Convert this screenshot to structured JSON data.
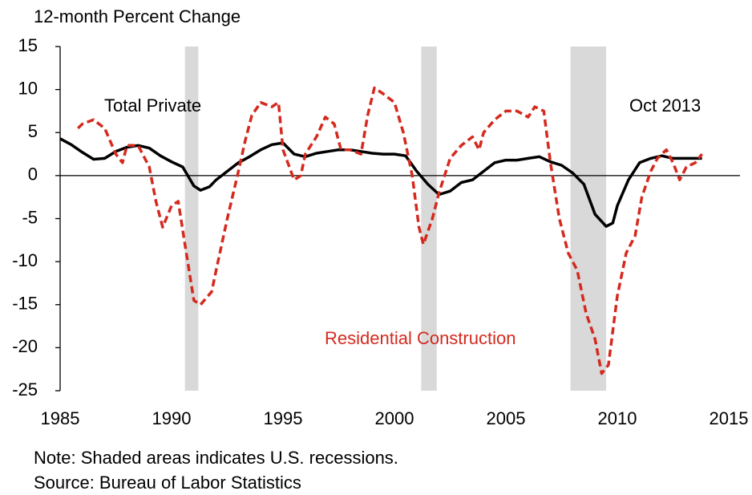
{
  "chart_data": {
    "type": "line",
    "ylabel": "12-month Percent Change",
    "xlim": [
      1985,
      2015
    ],
    "xticks": [
      1985,
      1990,
      1995,
      2000,
      2005,
      2010,
      2015
    ],
    "ylim": [
      -25,
      15
    ],
    "yticks": [
      -25,
      -20,
      -15,
      -10,
      -5,
      0,
      5,
      10,
      15
    ],
    "recessions": [
      [
        1990.6,
        1991.2
      ],
      [
        2001.2,
        2001.9
      ],
      [
        2007.9,
        2009.5
      ]
    ],
    "recession_color": "#d9d9d9",
    "annotations": [
      "Total Private",
      "Residential Construction",
      "Oct 2013"
    ],
    "note": "Note: Shaded areas indicates  U.S. recessions.",
    "source": "Source: Bureau of Labor Statistics",
    "series": [
      {
        "name": "Total Private",
        "color": "#000000",
        "style": "solid",
        "x": [
          1985,
          1985.5,
          1986,
          1986.5,
          1987,
          1987.5,
          1988,
          1988.5,
          1989,
          1989.5,
          1990,
          1990.5,
          1991,
          1991.3,
          1991.7,
          1992,
          1992.5,
          1993,
          1993.5,
          1994,
          1994.5,
          1995,
          1995.5,
          1996,
          1996.5,
          1997,
          1997.5,
          1998,
          1998.5,
          1999,
          1999.5,
          2000,
          2000.5,
          2001,
          2001.5,
          2002,
          2002.5,
          2003,
          2003.5,
          2004,
          2004.5,
          2005,
          2005.5,
          2006,
          2006.5,
          2007,
          2007.5,
          2008,
          2008.5,
          2009,
          2009.5,
          2009.8,
          2010,
          2010.5,
          2011,
          2011.5,
          2012,
          2012.5,
          2013,
          2013.8
        ],
        "values": [
          4.3,
          3.6,
          2.7,
          1.9,
          2.0,
          2.8,
          3.3,
          3.5,
          3.2,
          2.3,
          1.6,
          1.0,
          -1.2,
          -1.7,
          -1.3,
          -0.5,
          0.5,
          1.5,
          2.2,
          3.0,
          3.6,
          3.8,
          2.5,
          2.2,
          2.6,
          2.8,
          3.0,
          3.0,
          2.8,
          2.6,
          2.5,
          2.5,
          2.3,
          0.5,
          -1.0,
          -2.2,
          -1.8,
          -0.8,
          -0.5,
          0.5,
          1.5,
          1.8,
          1.8,
          2.0,
          2.2,
          1.6,
          1.2,
          0.3,
          -1.0,
          -4.5,
          -5.9,
          -5.5,
          -3.5,
          -0.5,
          1.5,
          2.0,
          2.3,
          2.0,
          2.0,
          2.0
        ]
      },
      {
        "name": "Residential Construction",
        "color": "#d42a1e",
        "style": "dashed",
        "x": [
          1985.8,
          1986,
          1986.5,
          1987,
          1987.5,
          1987.8,
          1988,
          1988.5,
          1989,
          1989.3,
          1989.6,
          1990,
          1990.3,
          1990.6,
          1991,
          1991.3,
          1991.8,
          1992,
          1992.5,
          1993,
          1993.3,
          1993.6,
          1994,
          1994.5,
          1994.8,
          1995,
          1995.5,
          1995.8,
          1996,
          1996.5,
          1996.9,
          1997.3,
          1997.6,
          1998,
          1998.5,
          1998.8,
          1999.1,
          1999.5,
          2000,
          2000.4,
          2000.8,
          2001.1,
          2001.3,
          2001.7,
          2002,
          2002.5,
          2003,
          2003.5,
          2003.8,
          2004,
          2004.5,
          2005,
          2005.5,
          2006,
          2006.3,
          2006.7,
          2007,
          2007.4,
          2007.8,
          2008.2,
          2008.6,
          2009,
          2009.3,
          2009.6,
          2010,
          2010.4,
          2010.8,
          2011.1,
          2011.5,
          2011.8,
          2012.2,
          2012.5,
          2012.8,
          2013.1,
          2013.5,
          2013.8
        ],
        "values": [
          5.5,
          6.0,
          6.5,
          5.5,
          2.5,
          1.5,
          3.5,
          3.5,
          1.0,
          -3.0,
          -6.0,
          -3.5,
          -3.0,
          -8.0,
          -14.5,
          -15.0,
          -13.5,
          -11.0,
          -5.0,
          0.5,
          4.0,
          7.0,
          8.5,
          8.0,
          8.5,
          3.0,
          -0.5,
          0.0,
          2.5,
          4.5,
          6.8,
          6.0,
          3.0,
          3.0,
          2.5,
          7.0,
          10.2,
          9.5,
          8.5,
          5.0,
          0.0,
          -6.0,
          -8.0,
          -5.0,
          -2.0,
          2.0,
          3.5,
          4.5,
          3.0,
          5.0,
          6.5,
          7.5,
          7.5,
          6.8,
          8.0,
          7.5,
          1.5,
          -5.0,
          -9.0,
          -11.0,
          -16.0,
          -19.0,
          -23.0,
          -22.0,
          -14.0,
          -9.0,
          -7.0,
          -2.5,
          0.5,
          2.0,
          3.0,
          1.5,
          -0.5,
          1.0,
          1.5,
          2.5
        ]
      }
    ]
  }
}
